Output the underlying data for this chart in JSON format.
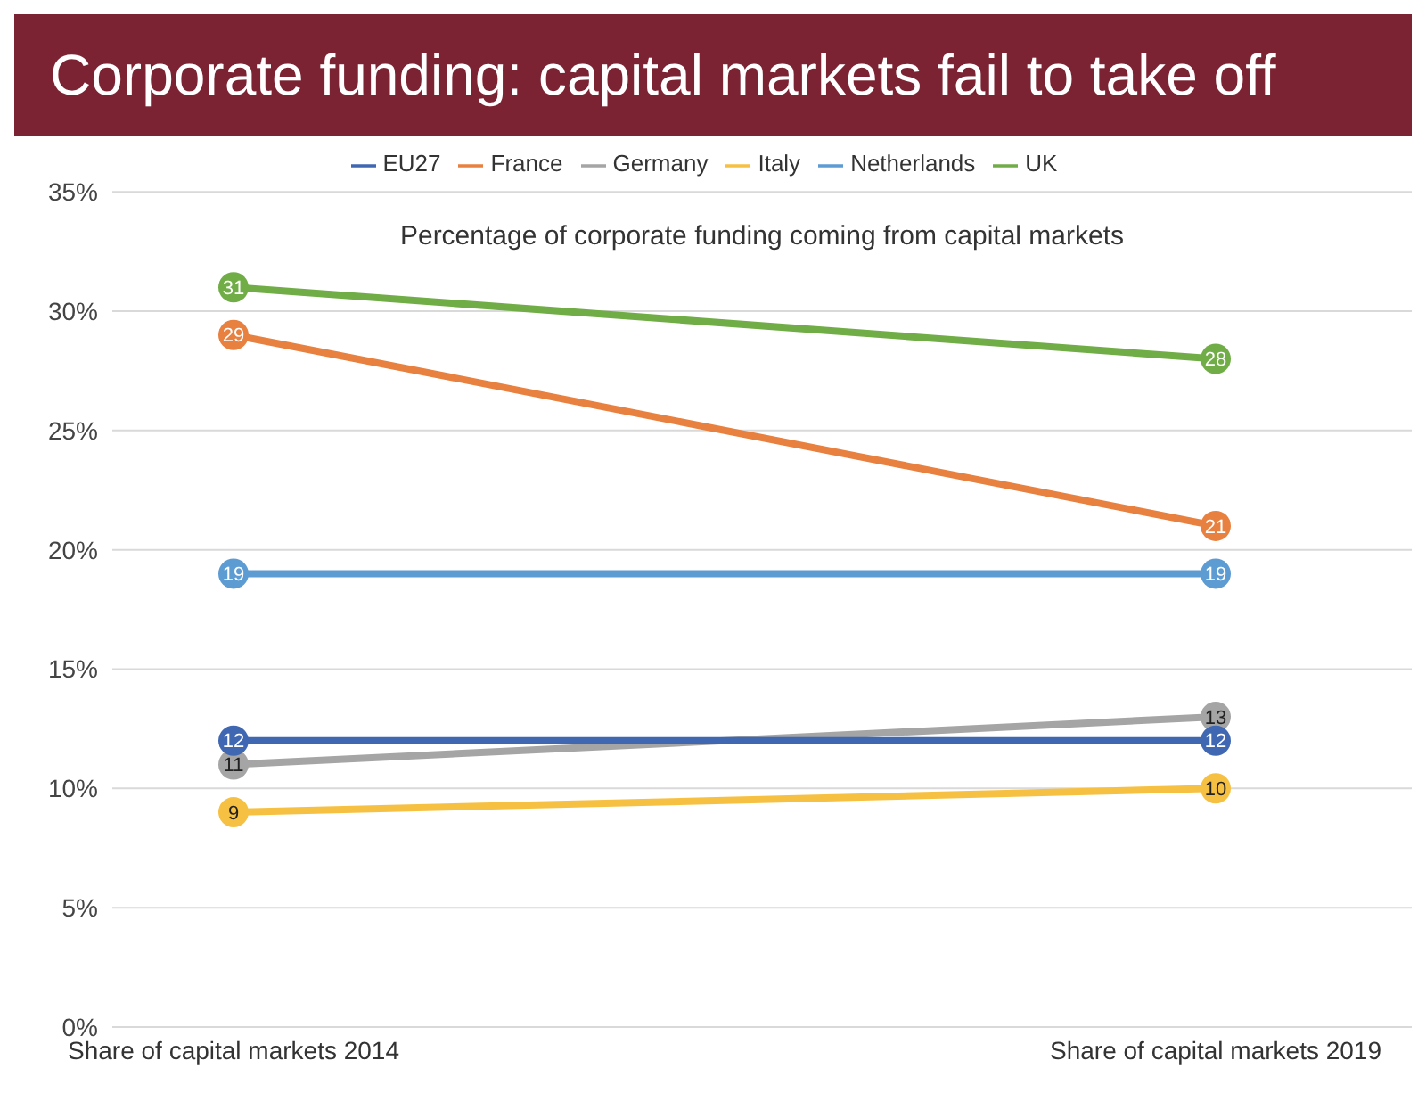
{
  "chart_data": {
    "type": "line",
    "title": "Corporate funding: capital markets fail to take off",
    "subtitle": "Percentage of corporate funding coming from capital markets",
    "categories": [
      "Share of capital markets 2014",
      "Share of capital markets 2019"
    ],
    "series": [
      {
        "name": "EU27",
        "color": "#4068b2",
        "values": [
          12,
          12
        ]
      },
      {
        "name": "France",
        "color": "#e8803f",
        "values": [
          29,
          21
        ]
      },
      {
        "name": "Germany",
        "color": "#a5a5a5",
        "values": [
          11,
          13
        ]
      },
      {
        "name": "Italy",
        "color": "#f6c143",
        "values": [
          9,
          10
        ]
      },
      {
        "name": "Netherlands",
        "color": "#5d9bd3",
        "values": [
          19,
          19
        ]
      },
      {
        "name": "UK",
        "color": "#70ad47",
        "values": [
          31,
          28
        ]
      }
    ],
    "ylim": [
      0,
      35
    ],
    "yticks": [
      {
        "value": 0,
        "label": "0%"
      },
      {
        "value": 5,
        "label": "5%"
      },
      {
        "value": 10,
        "label": "10%"
      },
      {
        "value": 15,
        "label": "15%"
      },
      {
        "value": 20,
        "label": "20%"
      },
      {
        "value": 25,
        "label": "25%"
      },
      {
        "value": 30,
        "label": "30%"
      },
      {
        "value": 35,
        "label": "35%"
      }
    ],
    "grid": "y",
    "legend": "top",
    "marker": "circle",
    "line_style": "solid",
    "data_labels": true
  }
}
